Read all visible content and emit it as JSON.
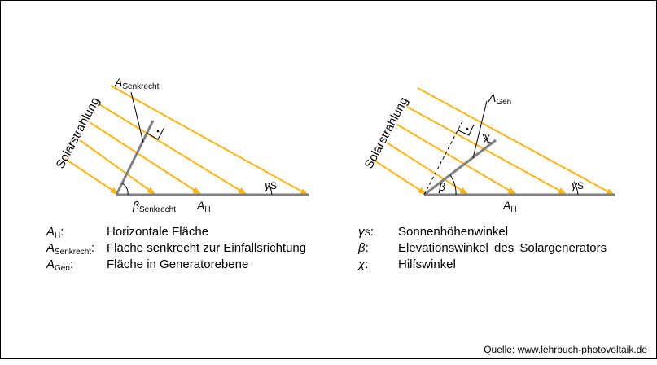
{
  "colors": {
    "ray": "#FDB515",
    "surface": "#808080",
    "text": "#000000"
  },
  "left_diagram": {
    "ray_label": "Solarstrahlung",
    "a_senkrecht": {
      "base": "A",
      "sub": "Senkrecht"
    },
    "beta": {
      "base": "β",
      "sub": "Senkrecht"
    },
    "gamma": {
      "base": "γ",
      "sub": "S"
    },
    "a_h": {
      "base": "A",
      "sub": "H"
    }
  },
  "right_diagram": {
    "ray_label": "Solarstrahlung",
    "a_gen": {
      "base": "A",
      "sub": "Gen"
    },
    "beta": "β",
    "chi": "χ",
    "gamma": {
      "base": "γ",
      "sub": "S"
    },
    "a_h": {
      "base": "A",
      "sub": "H"
    }
  },
  "legend_left": [
    {
      "base": "A",
      "sub": "H",
      "suffix": ":",
      "text": "Horizontale Fläche"
    },
    {
      "base": "A",
      "sub": "Senkrecht",
      "suffix": ":",
      "text": "Fläche senkrecht zur Einfallsrichtung"
    },
    {
      "base": "A",
      "sub": "Gen",
      "suffix": ":",
      "text": "Fläche in Generatorebene"
    }
  ],
  "legend_right": [
    {
      "base": "γ",
      "sub": "S",
      "suffix": ":",
      "text": "Sonnenhöhenwinkel"
    },
    {
      "base": "β",
      "sub": "",
      "suffix": ":",
      "text": "Elevationswinkel des Solargenerators"
    },
    {
      "base": "χ",
      "sub": "",
      "suffix": ":",
      "text": "Hilfswinkel"
    }
  ],
  "source": "Quelle: www.lehrbuch-photovoltaik.de"
}
